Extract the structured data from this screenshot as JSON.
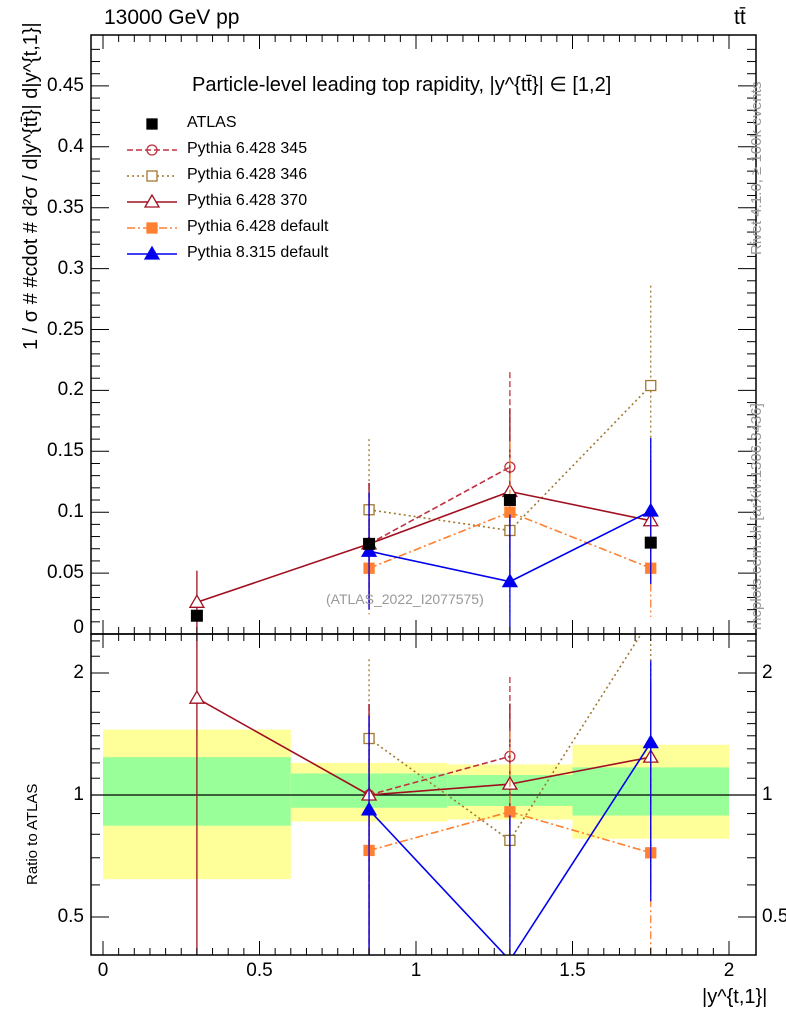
{
  "header": {
    "left": "13000 GeV pp",
    "right": "tt̄"
  },
  "side": {
    "rivet": "Rivet 4.1.0, ≥ 100k events",
    "mcplots": "mcplots.cern.ch [arXiv:1306.3436]"
  },
  "chart_data": {
    "type": "scatter",
    "title": "Particle-level leading top rapidity, |y^{tt̄}| ∈ [1,2]",
    "watermark": "(ATLAS_2022_I2077575)",
    "ylabel": "1 / σ # #cdot # d²σ / d|y^{tt̄}| d|y^{t,1}|",
    "ratio_ylabel": "Ratio to ATLAS",
    "xlabel": "|y^{t,1}|",
    "xlim": [
      -0.05,
      2.05
    ],
    "ylim": [
      0,
      0.49
    ],
    "ratio_ylim": [
      0.4,
      2.5
    ],
    "xticks": [
      "0",
      "0.5",
      "1",
      "1.5",
      "2"
    ],
    "yticks": [
      "0",
      "0.05",
      "0.1",
      "0.15",
      "0.2",
      "0.25",
      "0.3",
      "0.35",
      "0.4",
      "0.45"
    ],
    "ratio_yticks": [
      "0.5",
      "1",
      "2"
    ],
    "bins": [
      [
        0,
        0.6
      ],
      [
        0.6,
        1.1
      ],
      [
        1.1,
        1.5
      ],
      [
        1.5,
        2.0
      ]
    ],
    "x": [
      0.3,
      0.85,
      1.3,
      1.75
    ],
    "data": {
      "name": "ATLAS",
      "values": [
        0.015,
        0.074,
        0.11,
        0.075
      ],
      "band_stat": [
        [
          0.84,
          1.24
        ],
        [
          0.93,
          1.13
        ],
        [
          0.94,
          1.12
        ],
        [
          0.89,
          1.17
        ]
      ],
      "band_tot": [
        [
          0.62,
          1.45
        ],
        [
          0.86,
          1.2
        ],
        [
          0.87,
          1.19
        ],
        [
          0.78,
          1.33
        ]
      ]
    },
    "series": [
      {
        "name": "Pythia 6.428 345",
        "color": "#c03040",
        "marker": "circle-open",
        "dash": "6,3",
        "values": [
          null,
          0.074,
          0.137,
          null
        ],
        "err": [
          null,
          0.05,
          0.078,
          null
        ]
      },
      {
        "name": "Pythia 6.428 346",
        "color": "#a07830",
        "marker": "square-open",
        "dash": "2,3",
        "values": [
          null,
          0.102,
          0.085,
          0.204
        ],
        "err": [
          null,
          0.058,
          0.07,
          0.082
        ]
      },
      {
        "name": "Pythia 6.428 370",
        "color": "#a01020",
        "marker": "triangle-open",
        "dash": "",
        "values": [
          0.026,
          0.074,
          0.117,
          0.093
        ],
        "err": [
          0.026,
          0.05,
          0.068,
          0.05
        ]
      },
      {
        "name": "Pythia 6.428 default",
        "color": "#ff8030",
        "marker": "square-filled",
        "dash": "8,3,2,3",
        "values": [
          null,
          0.054,
          0.1,
          0.054
        ],
        "err": [
          null,
          0.038,
          0.058,
          0.04
        ]
      },
      {
        "name": "Pythia 8.315 default",
        "color": "#0000ee",
        "marker": "triangle-filled",
        "dash": "",
        "values": [
          null,
          0.068,
          0.043,
          0.101
        ],
        "err": [
          null,
          0.048,
          0.055,
          0.06
        ]
      }
    ]
  }
}
